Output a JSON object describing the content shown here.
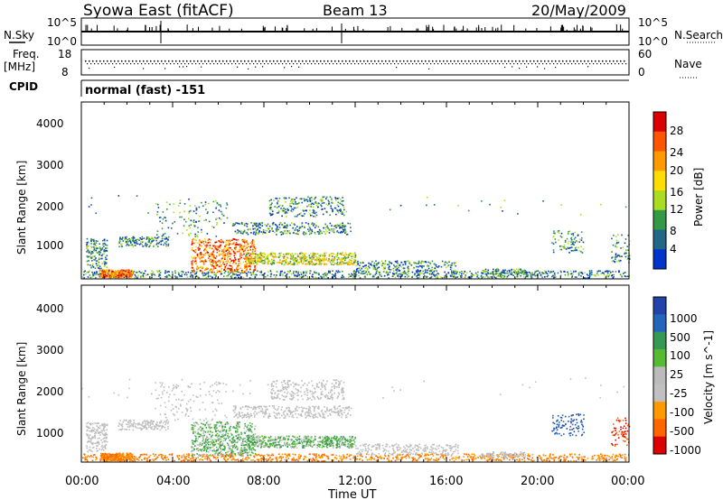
{
  "header": {
    "station": "Syowa East (fitACF)",
    "beam": "Beam 13",
    "date": "20/May/2009"
  },
  "nsky_panel": {
    "left_label": "N.Sky",
    "right_label": "N.Search",
    "top_tick": "10^5",
    "bottom_tick": "10^0",
    "right_top_tick": "10^5",
    "right_bottom_tick": "10^0"
  },
  "freq_panel": {
    "left_label": "Freq.",
    "left_unit": "[MHz]",
    "right_label": "Nave",
    "left_ticks": [
      "18",
      "8"
    ],
    "right_ticks": [
      "60",
      "0"
    ]
  },
  "cpid": {
    "label": "CPID",
    "mode": "normal (fast) -151"
  },
  "chart_data": [
    {
      "type": "heatmap",
      "name": "power",
      "ylabel": "Slant Range [km]",
      "y_ticks": [
        "4000",
        "3000",
        "2000",
        "1000"
      ],
      "ylim": [
        180,
        4600
      ],
      "x_ticks": [
        "00:00",
        "04:00",
        "08:00",
        "12:00",
        "16:00",
        "20:00",
        "00:00"
      ],
      "xlim_hours": [
        0,
        24
      ],
      "colorbar": {
        "label": "Power [dB]",
        "ticks": [
          "28",
          "24",
          "20",
          "16",
          "12",
          "8",
          "4"
        ],
        "colors": [
          "#dd0000",
          "#ff5500",
          "#ff9900",
          "#ffdd00",
          "#aadd22",
          "#339944",
          "#226688",
          "#0033cc"
        ]
      }
    },
    {
      "type": "heatmap",
      "name": "velocity",
      "ylabel": "Slant Range [km]",
      "y_ticks": [
        "4000",
        "3000",
        "2000",
        "1000"
      ],
      "ylim": [
        180,
        4600
      ],
      "x_ticks": [
        "00:00",
        "04:00",
        "08:00",
        "12:00",
        "16:00",
        "20:00",
        "00:00"
      ],
      "xlim_hours": [
        0,
        24
      ],
      "xlabel": "Time UT",
      "colorbar": {
        "label": "Velocity [m s^-1]",
        "ticks": [
          "1000",
          "500",
          "100",
          "25",
          "-25",
          "-100",
          "-500",
          "-1000"
        ],
        "colors": [
          "#2244aa",
          "#2266bb",
          "#339955",
          "#55bb33",
          "#bbbbbb",
          "#c0c0c0",
          "#ff9900",
          "#ff6600",
          "#dd0000"
        ]
      }
    }
  ]
}
